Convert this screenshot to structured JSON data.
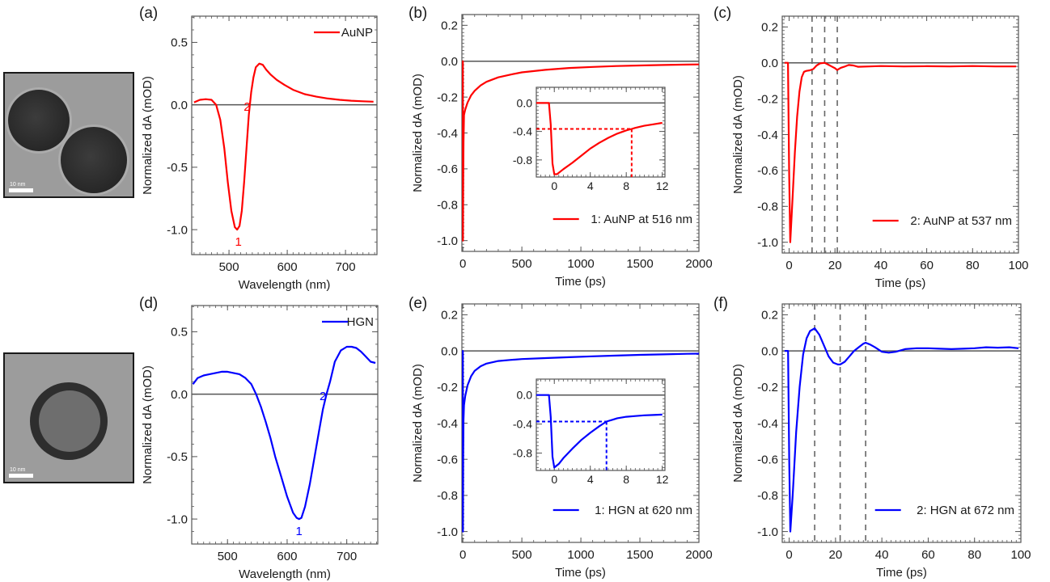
{
  "figure": {
    "tem_images": [
      {
        "name": "AuNP",
        "scale_label": "10 nm"
      },
      {
        "name": "HGN",
        "scale_label": "10 nm"
      }
    ]
  },
  "colors": {
    "AuNP": "#ff0000",
    "HGN": "#0000ff",
    "axis": "#555555",
    "zero_line": "#555555",
    "dashed": "#666666"
  },
  "chart_data": [
    {
      "id": "a",
      "panel_label": "(a)",
      "type": "line",
      "xlabel": "Wavelength (nm)",
      "ylabel": "Normalized dA (mOD)",
      "xlim": [
        436,
        754
      ],
      "ylim": [
        -1.2,
        0.71
      ],
      "xticks": [
        500,
        600,
        700
      ],
      "xtick_labels": [
        "500",
        "600",
        "700"
      ],
      "yticks": [
        0.5,
        0.0,
        -0.5,
        -1.0
      ],
      "ytick_labels": [
        "0.5",
        "0.0",
        "-0.5",
        "-1.0"
      ],
      "zero_line": true,
      "legend": {
        "label": "AuNP",
        "position": "top-right"
      },
      "series": [
        {
          "name": "AuNP",
          "color": "#ff0000",
          "x": [
            440,
            450,
            460,
            470,
            478,
            485,
            492,
            498,
            504,
            510,
            514,
            518,
            522,
            526,
            530,
            534,
            538,
            542,
            546,
            552,
            558,
            564,
            572,
            582,
            595,
            610,
            630,
            650,
            670,
            690,
            710,
            730,
            748
          ],
          "y": [
            0.02,
            0.04,
            0.045,
            0.04,
            0.0,
            -0.12,
            -0.35,
            -0.62,
            -0.85,
            -0.98,
            -1.0,
            -0.97,
            -0.85,
            -0.62,
            -0.35,
            -0.08,
            0.1,
            0.22,
            0.3,
            0.33,
            0.32,
            0.28,
            0.24,
            0.2,
            0.16,
            0.12,
            0.085,
            0.065,
            0.05,
            0.04,
            0.033,
            0.028,
            0.025
          ]
        }
      ],
      "annotations": [
        {
          "text": "1",
          "x": 516,
          "y": -1.09
        },
        {
          "text": "2",
          "x": 531,
          "y": -0.01
        }
      ]
    },
    {
      "id": "b",
      "panel_label": "(b)",
      "type": "line",
      "xlabel": "Time (ps)",
      "ylabel": "Normalized dA (mOD)",
      "xlim": [
        -8,
        2000
      ],
      "ylim": [
        -1.06,
        0.26
      ],
      "xticks": [
        0,
        500,
        1000,
        1500,
        2000
      ],
      "xtick_labels": [
        "0",
        "500",
        "1000",
        "1500",
        "2000"
      ],
      "yticks": [
        0.2,
        0.0,
        -0.2,
        -0.4,
        -0.6,
        -0.8,
        -1.0
      ],
      "ytick_labels": [
        "0.2",
        "0.0",
        "-0.2",
        "-0.4",
        "-0.6",
        "-0.8",
        "-1.0"
      ],
      "zero_line": true,
      "legend": {
        "label": "1: AuNP at 516 nm",
        "position": "bottom-right"
      },
      "series": [
        {
          "name": "1: AuNP at 516 nm",
          "color": "#ff0000",
          "x": [
            -5,
            0,
            1,
            3,
            6,
            10,
            20,
            40,
            70,
            100,
            150,
            200,
            300,
            400,
            500,
            700,
            900,
            1100,
            1300,
            1500,
            1700,
            1900,
            2000
          ],
          "y": [
            0.0,
            0.0,
            -1.0,
            -0.7,
            -0.45,
            -0.3,
            -0.27,
            -0.23,
            -0.19,
            -0.165,
            -0.135,
            -0.115,
            -0.09,
            -0.075,
            -0.062,
            -0.048,
            -0.038,
            -0.032,
            -0.027,
            -0.024,
            -0.021,
            -0.019,
            -0.018
          ]
        }
      ],
      "inset": {
        "xlim": [
          -2,
          12.3
        ],
        "ylim": [
          -1.04,
          0.22
        ],
        "xticks": [
          0,
          4,
          8,
          12
        ],
        "xtick_labels": [
          "0",
          "4",
          "8",
          "12"
        ],
        "yticks": [
          0.0,
          -0.4,
          -0.8
        ],
        "ytick_labels": [
          "0.0",
          "-0.4",
          "-0.8"
        ],
        "series": {
          "x": [
            -2,
            -0.6,
            -0.4,
            -0.2,
            0,
            0.3,
            1,
            2,
            3,
            4,
            5,
            6,
            7,
            8,
            8.6,
            9,
            10,
            11,
            12
          ],
          "y": [
            0.0,
            0.0,
            -0.3,
            -0.85,
            -1.0,
            -1.0,
            -0.93,
            -0.84,
            -0.74,
            -0.64,
            -0.56,
            -0.49,
            -0.43,
            -0.385,
            -0.365,
            -0.35,
            -0.32,
            -0.3,
            -0.28
          ]
        },
        "marker_x": 8.6,
        "marker_y": -0.365
      }
    },
    {
      "id": "c",
      "panel_label": "(c)",
      "type": "line",
      "xlabel": "Time (ps)",
      "ylabel": "Normalized dA (mOD)",
      "xlim": [
        -3,
        100
      ],
      "ylim": [
        -1.06,
        0.26
      ],
      "xticks": [
        0,
        20,
        40,
        60,
        80,
        100
      ],
      "xtick_labels": [
        "0",
        "20",
        "40",
        "60",
        "80",
        "100"
      ],
      "yticks": [
        0.2,
        0.0,
        -0.2,
        -0.4,
        -0.6,
        -0.8,
        -1.0
      ],
      "ytick_labels": [
        "0.2",
        "0.0",
        "-0.2",
        "-0.4",
        "-0.6",
        "-0.8",
        "-1.0"
      ],
      "zero_line": true,
      "dashed_x": [
        10,
        15.5,
        21
      ],
      "legend": {
        "label": "2: AuNP at 537 nm",
        "position": "bottom-right"
      },
      "series": [
        {
          "name": "2: AuNP at 537 nm",
          "color": "#ff0000",
          "x": [
            -2,
            -0.5,
            0,
            0.5,
            1.5,
            2.5,
            3.5,
            4.5,
            5.5,
            6.5,
            7.5,
            9,
            10.5,
            12,
            13.5,
            15.5,
            17,
            18.5,
            20,
            21,
            22.5,
            24,
            26,
            28,
            30,
            35,
            40,
            50,
            60,
            70,
            80,
            90,
            99
          ],
          "y": [
            0.0,
            0.0,
            -0.6,
            -1.0,
            -0.75,
            -0.5,
            -0.3,
            -0.16,
            -0.08,
            -0.05,
            -0.045,
            -0.042,
            -0.035,
            -0.015,
            -0.003,
            0.0,
            -0.01,
            -0.02,
            -0.03,
            -0.04,
            -0.028,
            -0.022,
            -0.012,
            -0.015,
            -0.022,
            -0.02,
            -0.018,
            -0.02,
            -0.019,
            -0.02,
            -0.018,
            -0.02,
            -0.02
          ]
        }
      ]
    },
    {
      "id": "d",
      "panel_label": "(d)",
      "type": "line",
      "xlabel": "Wavelength (nm)",
      "ylabel": "Normalized dA (mOD)",
      "xlim": [
        440,
        752
      ],
      "ylim": [
        -1.2,
        0.71
      ],
      "xticks": [
        500,
        600,
        700
      ],
      "xtick_labels": [
        "500",
        "600",
        "700"
      ],
      "yticks": [
        0.5,
        0.0,
        -0.5,
        -1.0
      ],
      "ytick_labels": [
        "0.5",
        "0.0",
        "-0.5",
        "-1.0"
      ],
      "zero_line": true,
      "legend": {
        "label": "HGN",
        "position": "top-right"
      },
      "series": [
        {
          "name": "HGN",
          "color": "#0000ff",
          "x": [
            442,
            450,
            460,
            470,
            480,
            490,
            500,
            510,
            520,
            530,
            540,
            548,
            556,
            564,
            572,
            580,
            590,
            600,
            610,
            616,
            620,
            624,
            630,
            638,
            646,
            654,
            660,
            666,
            672,
            680,
            690,
            700,
            708,
            716,
            724,
            732,
            740,
            748
          ],
          "y": [
            0.08,
            0.13,
            0.15,
            0.16,
            0.17,
            0.18,
            0.18,
            0.17,
            0.16,
            0.13,
            0.08,
            0.0,
            -0.1,
            -0.22,
            -0.35,
            -0.5,
            -0.66,
            -0.82,
            -0.95,
            -0.99,
            -1.0,
            -0.99,
            -0.9,
            -0.72,
            -0.5,
            -0.28,
            -0.12,
            0.0,
            0.1,
            0.26,
            0.35,
            0.38,
            0.38,
            0.37,
            0.34,
            0.3,
            0.26,
            0.25
          ]
        }
      ],
      "annotations": [
        {
          "text": "1",
          "x": 620,
          "y": -1.09
        },
        {
          "text": "2",
          "x": 660,
          "y": -0.01
        }
      ]
    },
    {
      "id": "e",
      "panel_label": "(e)",
      "type": "line",
      "xlabel": "Time (ps)",
      "ylabel": "Normalized dA (mOD)",
      "xlim": [
        -8,
        2000
      ],
      "ylim": [
        -1.06,
        0.26
      ],
      "xticks": [
        0,
        500,
        1000,
        1500,
        2000
      ],
      "xtick_labels": [
        "0",
        "500",
        "1000",
        "1500",
        "2000"
      ],
      "yticks": [
        0.2,
        0.0,
        -0.2,
        -0.4,
        -0.6,
        -0.8,
        -1.0
      ],
      "ytick_labels": [
        "0.2",
        "0.0",
        "-0.2",
        "-0.4",
        "-0.6",
        "-0.8",
        "-1.0"
      ],
      "zero_line": true,
      "legend": {
        "label": "1: HGN  at 620 nm",
        "position": "bottom-right"
      },
      "series": [
        {
          "name": "1: HGN  at 620 nm",
          "color": "#0000ff",
          "x": [
            -5,
            0,
            1,
            3,
            6,
            10,
            20,
            40,
            70,
            100,
            150,
            200,
            300,
            400,
            500,
            700,
            900,
            1100,
            1300,
            1500,
            1700,
            1900,
            2000
          ],
          "y": [
            0.0,
            0.0,
            -1.0,
            -0.6,
            -0.38,
            -0.3,
            -0.25,
            -0.19,
            -0.14,
            -0.11,
            -0.085,
            -0.07,
            -0.056,
            -0.05,
            -0.045,
            -0.04,
            -0.035,
            -0.03,
            -0.026,
            -0.022,
            -0.019,
            -0.016,
            -0.015
          ]
        }
      ],
      "inset": {
        "xlim": [
          -2,
          12.3
        ],
        "ylim": [
          -1.04,
          0.22
        ],
        "xticks": [
          0,
          4,
          8,
          12
        ],
        "xtick_labels": [
          "0",
          "4",
          "8",
          "12"
        ],
        "yticks": [
          0.0,
          -0.4,
          -0.8
        ],
        "ytick_labels": [
          "0.0",
          "-0.4",
          "-0.8"
        ],
        "series": {
          "x": [
            -2,
            -0.6,
            -0.4,
            -0.2,
            0,
            0.5,
            1,
            2,
            3,
            4,
            5,
            5.8,
            6.5,
            7,
            8,
            9,
            10,
            11,
            12
          ],
          "y": [
            0.0,
            0.0,
            -0.3,
            -0.85,
            -1.0,
            -0.95,
            -0.87,
            -0.74,
            -0.62,
            -0.52,
            -0.43,
            -0.365,
            -0.34,
            -0.32,
            -0.3,
            -0.29,
            -0.28,
            -0.275,
            -0.27
          ]
        },
        "marker_x": 5.8,
        "marker_y": -0.365
      }
    },
    {
      "id": "f",
      "panel_label": "(f)",
      "type": "line",
      "xlabel": "Time (ps)",
      "ylabel": "Normalized dA (mOD)",
      "xlim": [
        -3,
        100
      ],
      "ylim": [
        -1.06,
        0.26
      ],
      "xticks": [
        0,
        20,
        40,
        60,
        80,
        100
      ],
      "xtick_labels": [
        "0",
        "20",
        "40",
        "60",
        "80",
        "100"
      ],
      "yticks": [
        0.2,
        0.0,
        -0.2,
        -0.4,
        -0.6,
        -0.8,
        -1.0
      ],
      "ytick_labels": [
        "0.2",
        "0.0",
        "-0.2",
        "-0.4",
        "-0.6",
        "-0.8",
        "-1.0"
      ],
      "zero_line": true,
      "dashed_x": [
        11,
        22,
        33
      ],
      "legend": {
        "label": "2: HGN  at 672 nm",
        "position": "bottom-right"
      },
      "series": [
        {
          "name": "2: HGN  at 672 nm",
          "color": "#0000ff",
          "x": [
            -2,
            -0.5,
            0,
            0.5,
            1.5,
            3,
            4.5,
            6,
            7.5,
            9,
            11,
            13,
            15,
            17,
            19,
            21,
            22,
            24,
            26,
            28,
            30,
            32,
            33,
            35,
            37,
            40,
            43,
            46,
            50,
            55,
            60,
            65,
            70,
            75,
            80,
            85,
            90,
            95,
            99
          ],
          "y": [
            0.0,
            0.0,
            -0.6,
            -1.0,
            -0.8,
            -0.45,
            -0.2,
            -0.02,
            0.07,
            0.11,
            0.125,
            0.09,
            0.03,
            -0.03,
            -0.065,
            -0.075,
            -0.075,
            -0.06,
            -0.03,
            0.0,
            0.02,
            0.04,
            0.045,
            0.035,
            0.02,
            -0.005,
            -0.01,
            -0.005,
            0.01,
            0.015,
            0.015,
            0.012,
            0.01,
            0.012,
            0.015,
            0.02,
            0.018,
            0.02,
            0.015
          ]
        }
      ]
    }
  ]
}
